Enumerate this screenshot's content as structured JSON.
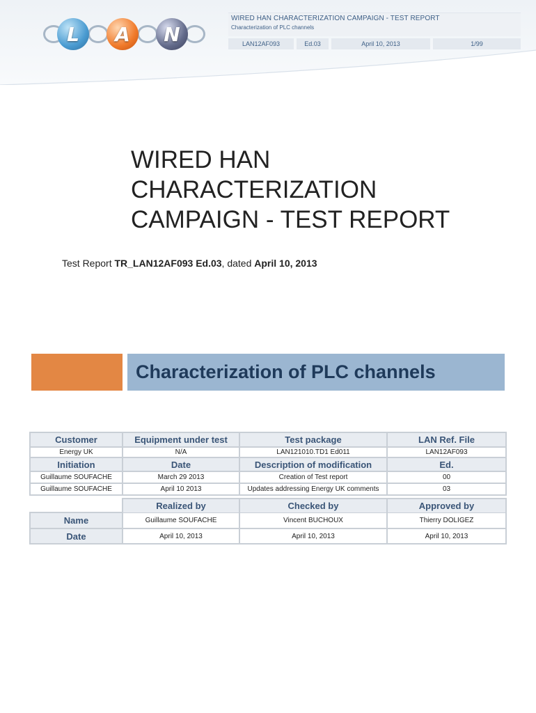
{
  "header": {
    "logo_letters": [
      "L",
      "A",
      "N"
    ],
    "title": "WIRED HAN CHARACTERIZATION CAMPAIGN - TEST REPORT",
    "subtitle": "Characterization of PLC channels",
    "reference": "LAN12AF093",
    "edition": "Ed.03",
    "date": "April 10, 2013",
    "page": "1/99"
  },
  "document": {
    "title_lines": [
      "WIRED HAN",
      "CHARACTERIZATION",
      "CAMPAIGN - TEST REPORT"
    ],
    "report_prefix": "Test Report ",
    "report_id": "TR_LAN12AF093 Ed.03",
    "report_mid": ", dated ",
    "report_date": "April 10, 2013",
    "subject": "Characterization of PLC channels"
  },
  "info_table": {
    "headers1": [
      "Customer",
      "Equipment under test",
      "Test package",
      "LAN Ref. File"
    ],
    "row1": [
      "Energy UK",
      "N/A",
      "LAN121010.TD1 Ed011",
      "LAN12AF093"
    ],
    "headers2": [
      "Initiation",
      "Date",
      "Description of modification",
      "Ed."
    ],
    "rows": [
      [
        "Guillaume SOUFACHE",
        "March 29 2013",
        "Creation of Test report",
        "00"
      ],
      [
        "Guillaume SOUFACHE",
        "April 10 2013",
        "Updates addressing Energy UK comments",
        "03"
      ]
    ]
  },
  "approval_table": {
    "headers": [
      "Realized by",
      "Checked by",
      "Approved by"
    ],
    "rows": [
      {
        "label": "Name",
        "values": [
          "Guillaume SOUFACHE",
          "Vincent BUCHOUX",
          "Thierry DOLIGEZ"
        ]
      },
      {
        "label": "Date",
        "values": [
          "April 10, 2013",
          "April 10, 2013",
          "April 10, 2013"
        ]
      }
    ]
  },
  "colors": {
    "accent_orange": "#e38744",
    "banner_blue": "#9bb6d1",
    "header_text": "#3d5f86"
  }
}
